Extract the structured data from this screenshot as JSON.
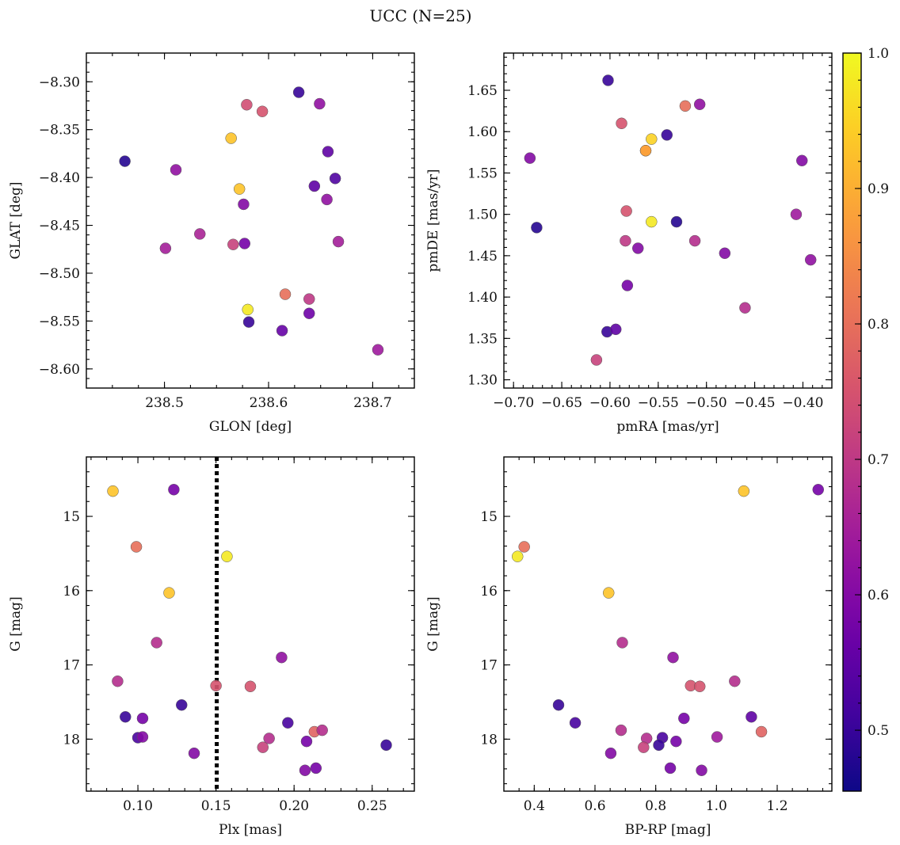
{
  "figure_title": "UCC (N=25)",
  "chart_data": [
    {
      "type": "scatter",
      "panel": "top-left",
      "xlabel": "GLON [deg]",
      "ylabel": "GLAT [deg]",
      "xlim": [
        238.425,
        238.74
      ],
      "ylim": [
        -8.62,
        -8.27
      ],
      "y_inverted": false,
      "x_ticks": [
        238.5,
        238.6,
        238.7
      ],
      "x_tick_labels": [
        "238.5",
        "238.6",
        "238.7"
      ],
      "y_ticks": [
        -8.3,
        -8.35,
        -8.4,
        -8.45,
        -8.5,
        -8.55,
        -8.6
      ],
      "y_tick_labels": [
        "−8.30",
        "−8.35",
        "−8.40",
        "−8.45",
        "−8.50",
        "−8.55",
        "−8.60"
      ],
      "points": [
        {
          "x": 238.462,
          "y": -8.383,
          "c": 0.48
        },
        {
          "x": 238.511,
          "y": -8.392,
          "c": 0.62
        },
        {
          "x": 238.501,
          "y": -8.474,
          "c": 0.65
        },
        {
          "x": 238.534,
          "y": -8.459,
          "c": 0.66
        },
        {
          "x": 238.564,
          "y": -8.359,
          "c": 0.93
        },
        {
          "x": 238.572,
          "y": -8.412,
          "c": 0.93
        },
        {
          "x": 238.579,
          "y": -8.324,
          "c": 0.74
        },
        {
          "x": 238.594,
          "y": -8.331,
          "c": 0.75
        },
        {
          "x": 238.629,
          "y": -8.311,
          "c": 0.5
        },
        {
          "x": 238.649,
          "y": -8.323,
          "c": 0.62
        },
        {
          "x": 238.576,
          "y": -8.428,
          "c": 0.6
        },
        {
          "x": 238.566,
          "y": -8.47,
          "c": 0.72
        },
        {
          "x": 238.577,
          "y": -8.469,
          "c": 0.58
        },
        {
          "x": 238.657,
          "y": -8.373,
          "c": 0.55
        },
        {
          "x": 238.664,
          "y": -8.401,
          "c": 0.53
        },
        {
          "x": 238.644,
          "y": -8.409,
          "c": 0.55
        },
        {
          "x": 238.656,
          "y": -8.423,
          "c": 0.62
        },
        {
          "x": 238.667,
          "y": -8.467,
          "c": 0.65
        },
        {
          "x": 238.616,
          "y": -8.522,
          "c": 0.8
        },
        {
          "x": 238.639,
          "y": -8.527,
          "c": 0.7
        },
        {
          "x": 238.58,
          "y": -8.538,
          "c": 0.98
        },
        {
          "x": 238.581,
          "y": -8.551,
          "c": 0.5
        },
        {
          "x": 238.613,
          "y": -8.56,
          "c": 0.56
        },
        {
          "x": 238.639,
          "y": -8.542,
          "c": 0.57
        },
        {
          "x": 238.705,
          "y": -8.58,
          "c": 0.64
        }
      ]
    },
    {
      "type": "scatter",
      "panel": "top-right",
      "xlabel": "pmRA [mas/yr]",
      "ylabel": "pmDE [mas/yr]",
      "xlim": [
        -0.71,
        -0.37
      ],
      "ylim": [
        1.29,
        1.695
      ],
      "y_inverted": false,
      "x_ticks": [
        -0.7,
        -0.65,
        -0.6,
        -0.55,
        -0.5,
        -0.45,
        -0.4
      ],
      "x_tick_labels": [
        "−0.70",
        "−0.65",
        "−0.60",
        "−0.55",
        "−0.50",
        "−0.45",
        "−0.40"
      ],
      "y_ticks": [
        1.3,
        1.35,
        1.4,
        1.45,
        1.5,
        1.55,
        1.6,
        1.65
      ],
      "y_tick_labels": [
        "1.30",
        "1.35",
        "1.40",
        "1.45",
        "1.50",
        "1.55",
        "1.60",
        "1.65"
      ],
      "points": [
        {
          "x": -0.683,
          "y": 1.568,
          "c": 0.6
        },
        {
          "x": -0.676,
          "y": 1.484,
          "c": 0.48
        },
        {
          "x": -0.602,
          "y": 1.662,
          "c": 0.5
        },
        {
          "x": -0.588,
          "y": 1.61,
          "c": 0.75
        },
        {
          "x": -0.563,
          "y": 1.577,
          "c": 0.88
        },
        {
          "x": -0.557,
          "y": 1.591,
          "c": 0.95
        },
        {
          "x": -0.541,
          "y": 1.596,
          "c": 0.5
        },
        {
          "x": -0.522,
          "y": 1.631,
          "c": 0.8
        },
        {
          "x": -0.507,
          "y": 1.633,
          "c": 0.62
        },
        {
          "x": -0.583,
          "y": 1.504,
          "c": 0.75
        },
        {
          "x": -0.557,
          "y": 1.491,
          "c": 0.98
        },
        {
          "x": -0.531,
          "y": 1.491,
          "c": 0.48
        },
        {
          "x": -0.584,
          "y": 1.468,
          "c": 0.7
        },
        {
          "x": -0.571,
          "y": 1.459,
          "c": 0.6
        },
        {
          "x": -0.512,
          "y": 1.468,
          "c": 0.68
        },
        {
          "x": -0.481,
          "y": 1.453,
          "c": 0.6
        },
        {
          "x": -0.582,
          "y": 1.414,
          "c": 0.58
        },
        {
          "x": -0.46,
          "y": 1.387,
          "c": 0.68
        },
        {
          "x": -0.603,
          "y": 1.358,
          "c": 0.5
        },
        {
          "x": -0.594,
          "y": 1.361,
          "c": 0.55
        },
        {
          "x": -0.614,
          "y": 1.324,
          "c": 0.72
        },
        {
          "x": -0.401,
          "y": 1.565,
          "c": 0.6
        },
        {
          "x": -0.407,
          "y": 1.5,
          "c": 0.64
        },
        {
          "x": -0.392,
          "y": 1.445,
          "c": 0.62
        },
        {
          "x": -0.563,
          "y": 1.577,
          "c": 0.88
        }
      ]
    },
    {
      "type": "scatter",
      "panel": "bottom-left",
      "xlabel": "Plx [mas]",
      "ylabel": "G [mag]",
      "xlim": [
        0.067,
        0.277
      ],
      "ylim": [
        18.7,
        14.2
      ],
      "y_inverted": true,
      "x_ticks": [
        0.1,
        0.15,
        0.2,
        0.25
      ],
      "x_tick_labels": [
        "0.10",
        "0.15",
        "0.20",
        "0.25"
      ],
      "y_ticks": [
        15,
        16,
        17,
        18
      ],
      "y_tick_labels": [
        "15",
        "16",
        "17",
        "18"
      ],
      "vline": {
        "x": 0.1505,
        "style": "dotted",
        "color": "#000000"
      },
      "points": [
        {
          "x": 0.084,
          "y": 14.66,
          "c": 0.93
        },
        {
          "x": 0.123,
          "y": 14.64,
          "c": 0.58
        },
        {
          "x": 0.099,
          "y": 15.41,
          "c": 0.8
        },
        {
          "x": 0.157,
          "y": 15.54,
          "c": 0.98
        },
        {
          "x": 0.12,
          "y": 16.03,
          "c": 0.93
        },
        {
          "x": 0.112,
          "y": 16.7,
          "c": 0.68
        },
        {
          "x": 0.192,
          "y": 16.9,
          "c": 0.62
        },
        {
          "x": 0.087,
          "y": 17.22,
          "c": 0.68
        },
        {
          "x": 0.15,
          "y": 17.28,
          "c": 0.75
        },
        {
          "x": 0.172,
          "y": 17.29,
          "c": 0.75
        },
        {
          "x": 0.128,
          "y": 17.54,
          "c": 0.5
        },
        {
          "x": 0.092,
          "y": 17.7,
          "c": 0.5
        },
        {
          "x": 0.103,
          "y": 17.72,
          "c": 0.58
        },
        {
          "x": 0.196,
          "y": 17.78,
          "c": 0.52
        },
        {
          "x": 0.213,
          "y": 17.9,
          "c": 0.78
        },
        {
          "x": 0.218,
          "y": 17.88,
          "c": 0.68
        },
        {
          "x": 0.1,
          "y": 17.98,
          "c": 0.52
        },
        {
          "x": 0.103,
          "y": 17.97,
          "c": 0.6
        },
        {
          "x": 0.184,
          "y": 17.99,
          "c": 0.68
        },
        {
          "x": 0.208,
          "y": 18.03,
          "c": 0.58
        },
        {
          "x": 0.259,
          "y": 18.08,
          "c": 0.5
        },
        {
          "x": 0.18,
          "y": 18.11,
          "c": 0.72
        },
        {
          "x": 0.136,
          "y": 18.19,
          "c": 0.6
        },
        {
          "x": 0.207,
          "y": 18.42,
          "c": 0.6
        },
        {
          "x": 0.214,
          "y": 18.39,
          "c": 0.58
        }
      ]
    },
    {
      "type": "scatter",
      "panel": "bottom-right",
      "xlabel": "BP-RP [mag]",
      "ylabel": "G [mag]",
      "xlim": [
        0.3,
        1.38
      ],
      "ylim": [
        18.7,
        14.2
      ],
      "y_inverted": true,
      "x_ticks": [
        0.4,
        0.6,
        0.8,
        1.0,
        1.2
      ],
      "x_tick_labels": [
        "0.4",
        "0.6",
        "0.8",
        "1.0",
        "1.2"
      ],
      "y_ticks": [
        15,
        16,
        17,
        18
      ],
      "y_tick_labels": [
        "15",
        "16",
        "17",
        "18"
      ],
      "points": [
        {
          "x": 1.09,
          "y": 14.66,
          "c": 0.93
        },
        {
          "x": 1.335,
          "y": 14.64,
          "c": 0.58
        },
        {
          "x": 0.367,
          "y": 15.41,
          "c": 0.8
        },
        {
          "x": 0.345,
          "y": 15.54,
          "c": 0.98
        },
        {
          "x": 0.645,
          "y": 16.03,
          "c": 0.93
        },
        {
          "x": 0.69,
          "y": 16.7,
          "c": 0.68
        },
        {
          "x": 0.857,
          "y": 16.9,
          "c": 0.62
        },
        {
          "x": 1.06,
          "y": 17.22,
          "c": 0.68
        },
        {
          "x": 0.915,
          "y": 17.28,
          "c": 0.75
        },
        {
          "x": 0.945,
          "y": 17.29,
          "c": 0.75
        },
        {
          "x": 0.48,
          "y": 17.54,
          "c": 0.5
        },
        {
          "x": 1.115,
          "y": 17.7,
          "c": 0.55
        },
        {
          "x": 0.893,
          "y": 17.72,
          "c": 0.58
        },
        {
          "x": 0.535,
          "y": 17.78,
          "c": 0.52
        },
        {
          "x": 1.148,
          "y": 17.9,
          "c": 0.78
        },
        {
          "x": 0.686,
          "y": 17.88,
          "c": 0.68
        },
        {
          "x": 1.002,
          "y": 17.97,
          "c": 0.64
        },
        {
          "x": 0.77,
          "y": 17.99,
          "c": 0.68
        },
        {
          "x": 0.822,
          "y": 17.98,
          "c": 0.52
        },
        {
          "x": 0.867,
          "y": 18.03,
          "c": 0.58
        },
        {
          "x": 0.81,
          "y": 18.08,
          "c": 0.5
        },
        {
          "x": 0.76,
          "y": 18.11,
          "c": 0.72
        },
        {
          "x": 0.652,
          "y": 18.19,
          "c": 0.6
        },
        {
          "x": 0.951,
          "y": 18.42,
          "c": 0.6
        },
        {
          "x": 0.848,
          "y": 18.39,
          "c": 0.58
        }
      ]
    }
  ],
  "colorbar": {
    "cmap": "plasma",
    "range": [
      0.455,
      1.0
    ],
    "ticks": [
      0.5,
      0.6,
      0.7,
      0.8,
      0.9,
      1.0
    ],
    "tick_labels": [
      "0.5",
      "0.6",
      "0.7",
      "0.8",
      "0.9",
      "1.0"
    ]
  },
  "colors": {
    "plasma_stops": [
      "#0d0887",
      "#46039f",
      "#7201a8",
      "#9c179e",
      "#bd3786",
      "#d8576b",
      "#ed7953",
      "#fb9f3a",
      "#fdca26",
      "#f0f921"
    ],
    "point_edge": "#555555"
  }
}
